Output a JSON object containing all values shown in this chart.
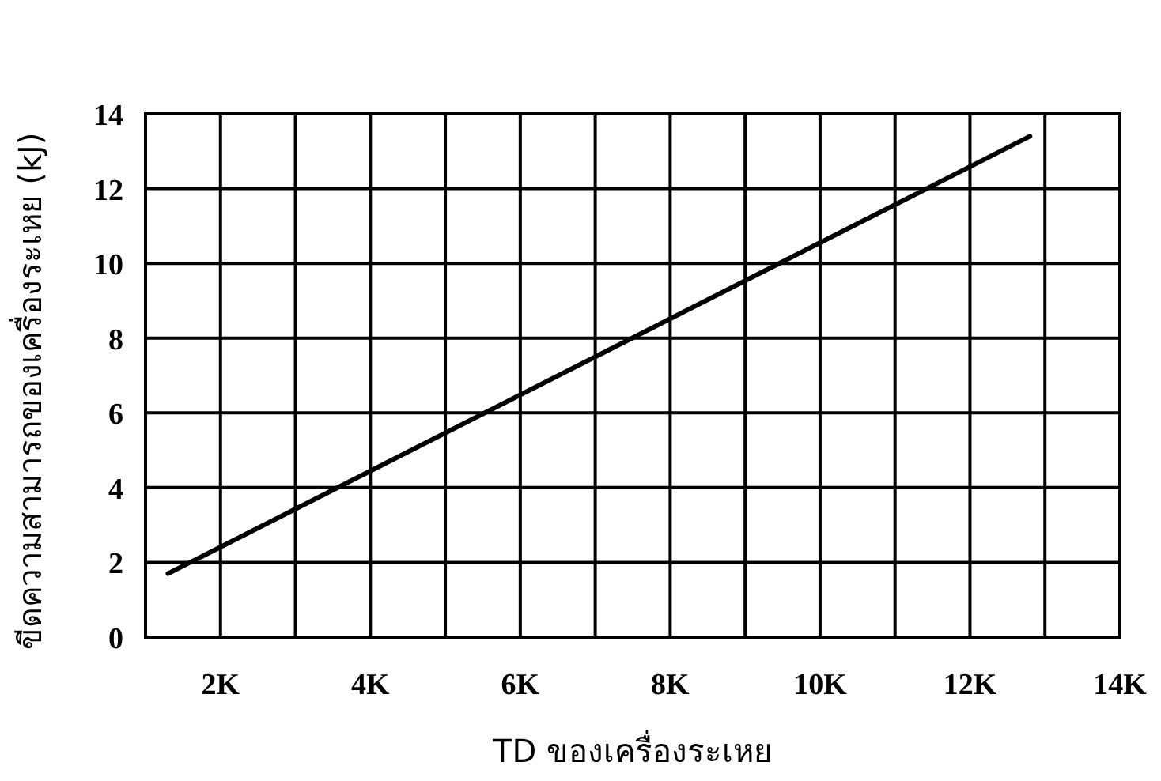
{
  "chart_data": {
    "type": "line",
    "xlabel": "TD ของเครื่องระเหย",
    "ylabel": "ขีดความสามารถของเครื่องระเหย (kJ)",
    "x": [
      1300,
      12800
    ],
    "series": [
      {
        "color": "#000000",
        "values": [
          1.7,
          13.4
        ]
      }
    ],
    "xlim": [
      1000,
      14000
    ],
    "xticks": [
      {
        "value": 2000,
        "label": "2K"
      },
      {
        "value": 3000,
        "label": null
      },
      {
        "value": 4000,
        "label": "4K"
      },
      {
        "value": 5000,
        "label": null
      },
      {
        "value": 6000,
        "label": "6K"
      },
      {
        "value": 7000,
        "label": null
      },
      {
        "value": 8000,
        "label": "8K"
      },
      {
        "value": 9000,
        "label": null
      },
      {
        "value": 10000,
        "label": "10K"
      },
      {
        "value": 11000,
        "label": null
      },
      {
        "value": 12000,
        "label": "12K"
      },
      {
        "value": 13000,
        "label": null
      },
      {
        "value": 14000,
        "label": "14K"
      }
    ],
    "ylim": [
      0,
      14
    ],
    "yticks": [
      0,
      2,
      4,
      6,
      8,
      10,
      12,
      14
    ],
    "grid": true,
    "marker": "none",
    "line_style": "solid"
  }
}
